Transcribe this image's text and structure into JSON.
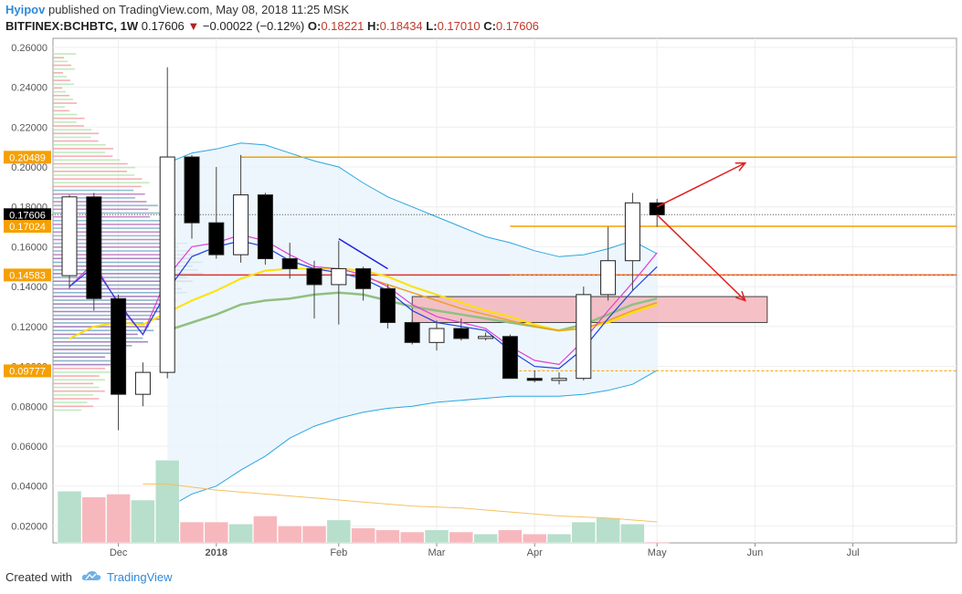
{
  "header": {
    "author": "Hyipov",
    "published_text": "published on TradingView.com, May 08, 2018 11:25 MSK",
    "symbol": "BITFINEX:BCHBTC, 1W",
    "last_price": "0.17606",
    "change_arrow": "▼",
    "change": "−0.00022 (−0.12%)",
    "open_label": "O:",
    "open": "0.18221",
    "high_label": "H:",
    "high": "0.18434",
    "low_label": "L:",
    "low": "0.17010",
    "close_label": "C:",
    "close": "0.17606"
  },
  "footer": {
    "created_with": "Created with",
    "brand": "TradingView"
  },
  "colors": {
    "up_candle_fill": "#ffffff",
    "down_candle_fill": "#000000",
    "orange_level": "#f5a000",
    "red_level": "#e03030",
    "pink_zone": "#f4b6bd",
    "bb_line": "#2aa6e0",
    "bb_fill": "#e8f4fb",
    "magenta_ma": "#e040d0",
    "blue_ma": "#2040e0",
    "yellow_ma": "#ffe000",
    "orange_ma": "#f0a020",
    "green_ma": "#90c080",
    "vol_up": "#b7dfcc",
    "vol_down": "#f7b8bd",
    "arrow": "#e02020"
  },
  "chart_data": {
    "type": "candlestick",
    "symbol": "BITFINEX:BCHBTC",
    "interval": "1W",
    "ylim": [
      0.0115,
      0.2645
    ],
    "y_ticks": [
      "0.26000",
      "0.24000",
      "0.22000",
      "0.20000",
      "0.18000",
      "0.16000",
      "0.14000",
      "0.12000",
      "0.10000",
      "0.08000",
      "0.06000",
      "0.04000",
      "0.02000"
    ],
    "x_ticks": [
      "Dec",
      "2018",
      "Feb",
      "Mar",
      "Apr",
      "May",
      "Jun",
      "Jul"
    ],
    "price_labels": [
      {
        "text": "0.20489",
        "value": 0.20489,
        "color": "#f5a000"
      },
      {
        "text": "0.17606",
        "value": 0.17606,
        "color": "#000000"
      },
      {
        "text": "0.17024",
        "value": 0.17024,
        "color": "#f5a000"
      },
      {
        "text": "0.14583",
        "value": 0.14583,
        "color": "#f5a000"
      },
      {
        "text": "0.09777",
        "value": 0.09777,
        "color": "#f5a000"
      }
    ],
    "candles": [
      {
        "week": 0,
        "o": 0.1455,
        "h": 0.186,
        "l": 0.139,
        "c": 0.185
      },
      {
        "week": 1,
        "o": 0.185,
        "h": 0.187,
        "l": 0.128,
        "c": 0.134
      },
      {
        "week": 2,
        "o": 0.134,
        "h": 0.136,
        "l": 0.068,
        "c": 0.086
      },
      {
        "week": 3,
        "o": 0.086,
        "h": 0.102,
        "l": 0.08,
        "c": 0.097
      },
      {
        "week": 4,
        "o": 0.097,
        "h": 0.25,
        "l": 0.094,
        "c": 0.205
      },
      {
        "week": 5,
        "o": 0.205,
        "h": 0.206,
        "l": 0.164,
        "c": 0.172
      },
      {
        "week": 6,
        "o": 0.172,
        "h": 0.2,
        "l": 0.154,
        "c": 0.156
      },
      {
        "week": 7,
        "o": 0.156,
        "h": 0.206,
        "l": 0.152,
        "c": 0.186
      },
      {
        "week": 8,
        "o": 0.186,
        "h": 0.187,
        "l": 0.151,
        "c": 0.154
      },
      {
        "week": 9,
        "o": 0.154,
        "h": 0.162,
        "l": 0.144,
        "c": 0.149
      },
      {
        "week": 10,
        "o": 0.149,
        "h": 0.153,
        "l": 0.124,
        "c": 0.141
      },
      {
        "week": 11,
        "o": 0.141,
        "h": 0.163,
        "l": 0.121,
        "c": 0.149
      },
      {
        "week": 12,
        "o": 0.149,
        "h": 0.15,
        "l": 0.133,
        "c": 0.139
      },
      {
        "week": 13,
        "o": 0.139,
        "h": 0.141,
        "l": 0.119,
        "c": 0.122
      },
      {
        "week": 14,
        "o": 0.122,
        "h": 0.123,
        "l": 0.111,
        "c": 0.112
      },
      {
        "week": 15,
        "o": 0.112,
        "h": 0.123,
        "l": 0.108,
        "c": 0.119
      },
      {
        "week": 16,
        "o": 0.119,
        "h": 0.124,
        "l": 0.113,
        "c": 0.114
      },
      {
        "week": 17,
        "o": 0.114,
        "h": 0.117,
        "l": 0.113,
        "c": 0.115
      },
      {
        "week": 18,
        "o": 0.115,
        "h": 0.116,
        "l": 0.094,
        "c": 0.094
      },
      {
        "week": 19,
        "o": 0.094,
        "h": 0.098,
        "l": 0.092,
        "c": 0.093
      },
      {
        "week": 20,
        "o": 0.093,
        "h": 0.097,
        "l": 0.091,
        "c": 0.094
      },
      {
        "week": 21,
        "o": 0.094,
        "h": 0.14,
        "l": 0.093,
        "c": 0.136
      },
      {
        "week": 22,
        "o": 0.136,
        "h": 0.17,
        "l": 0.133,
        "c": 0.153
      },
      {
        "week": 23,
        "o": 0.153,
        "h": 0.187,
        "l": 0.138,
        "c": 0.182
      },
      {
        "week": 24,
        "o": 0.182,
        "h": 0.184,
        "l": 0.17,
        "c": 0.176
      }
    ],
    "volume": [
      {
        "week": -1,
        "v": 0.0095,
        "up": false
      },
      {
        "week": 0,
        "v": 0.0375,
        "up": true
      },
      {
        "week": 1,
        "v": 0.0345,
        "up": false
      },
      {
        "week": 2,
        "v": 0.036,
        "up": false
      },
      {
        "week": 3,
        "v": 0.033,
        "up": true
      },
      {
        "week": 4,
        "v": 0.053,
        "up": true
      },
      {
        "week": 5,
        "v": 0.022,
        "up": false
      },
      {
        "week": 6,
        "v": 0.022,
        "up": false
      },
      {
        "week": 7,
        "v": 0.021,
        "up": true
      },
      {
        "week": 8,
        "v": 0.025,
        "up": false
      },
      {
        "week": 9,
        "v": 0.02,
        "up": false
      },
      {
        "week": 10,
        "v": 0.02,
        "up": false
      },
      {
        "week": 11,
        "v": 0.023,
        "up": true
      },
      {
        "week": 12,
        "v": 0.019,
        "up": false
      },
      {
        "week": 13,
        "v": 0.018,
        "up": false
      },
      {
        "week": 14,
        "v": 0.017,
        "up": false
      },
      {
        "week": 15,
        "v": 0.018,
        "up": true
      },
      {
        "week": 16,
        "v": 0.017,
        "up": false
      },
      {
        "week": 17,
        "v": 0.016,
        "up": true
      },
      {
        "week": 18,
        "v": 0.018,
        "up": false
      },
      {
        "week": 19,
        "v": 0.016,
        "up": false
      },
      {
        "week": 20,
        "v": 0.016,
        "up": true
      },
      {
        "week": 21,
        "v": 0.022,
        "up": true
      },
      {
        "week": 22,
        "v": 0.024,
        "up": true
      },
      {
        "week": 23,
        "v": 0.021,
        "up": true
      },
      {
        "week": 24,
        "v": 0.012,
        "up": false
      }
    ],
    "volume_ma": [
      [
        3,
        0.041
      ],
      [
        4,
        0.041
      ],
      [
        6,
        0.038
      ],
      [
        8,
        0.036
      ],
      [
        10,
        0.034
      ],
      [
        12,
        0.032
      ],
      [
        14,
        0.03
      ],
      [
        16,
        0.029
      ],
      [
        18,
        0.027
      ],
      [
        20,
        0.025
      ],
      [
        22,
        0.024
      ],
      [
        24,
        0.022
      ]
    ],
    "bollinger": {
      "upper": [
        [
          4,
          0.202
        ],
        [
          5,
          0.207
        ],
        [
          6,
          0.209
        ],
        [
          7,
          0.212
        ],
        [
          8,
          0.211
        ],
        [
          9,
          0.207
        ],
        [
          10,
          0.203
        ],
        [
          11,
          0.2
        ],
        [
          12,
          0.192
        ],
        [
          13,
          0.185
        ],
        [
          14,
          0.18
        ],
        [
          15,
          0.175
        ],
        [
          16,
          0.17
        ],
        [
          17,
          0.165
        ],
        [
          18,
          0.162
        ],
        [
          19,
          0.158
        ],
        [
          20,
          0.155
        ],
        [
          21,
          0.156
        ],
        [
          22,
          0.159
        ],
        [
          23,
          0.163
        ],
        [
          24,
          0.1565
        ]
      ],
      "lower": [
        [
          4,
          0.029
        ],
        [
          5,
          0.036
        ],
        [
          6,
          0.04
        ],
        [
          7,
          0.048
        ],
        [
          8,
          0.055
        ],
        [
          9,
          0.064
        ],
        [
          10,
          0.07
        ],
        [
          11,
          0.074
        ],
        [
          12,
          0.077
        ],
        [
          13,
          0.079
        ],
        [
          14,
          0.08
        ],
        [
          15,
          0.082
        ],
        [
          16,
          0.083
        ],
        [
          17,
          0.084
        ],
        [
          18,
          0.085
        ],
        [
          19,
          0.085
        ],
        [
          20,
          0.085
        ],
        [
          21,
          0.086
        ],
        [
          22,
          0.088
        ],
        [
          23,
          0.091
        ],
        [
          24,
          0.098
        ]
      ]
    },
    "ma_magenta": [
      [
        0,
        0.14
      ],
      [
        1,
        0.152
      ],
      [
        2,
        0.131
      ],
      [
        3,
        0.116
      ],
      [
        4,
        0.145
      ],
      [
        5,
        0.16
      ],
      [
        6,
        0.162
      ],
      [
        7,
        0.166
      ],
      [
        8,
        0.163
      ],
      [
        9,
        0.156
      ],
      [
        10,
        0.15
      ],
      [
        11,
        0.149
      ],
      [
        12,
        0.146
      ],
      [
        13,
        0.14
      ],
      [
        14,
        0.131
      ],
      [
        15,
        0.125
      ],
      [
        16,
        0.122
      ],
      [
        17,
        0.119
      ],
      [
        18,
        0.11
      ],
      [
        19,
        0.103
      ],
      [
        20,
        0.101
      ],
      [
        21,
        0.113
      ],
      [
        22,
        0.128
      ],
      [
        23,
        0.142
      ],
      [
        24,
        0.157
      ]
    ],
    "ma_blue": [
      [
        0,
        0.14
      ],
      [
        1,
        0.15
      ],
      [
        2,
        0.132
      ],
      [
        3,
        0.116
      ],
      [
        4,
        0.138
      ],
      [
        5,
        0.155
      ],
      [
        6,
        0.16
      ],
      [
        7,
        0.163
      ],
      [
        8,
        0.16
      ],
      [
        9,
        0.153
      ],
      [
        10,
        0.149
      ],
      [
        11,
        0.147
      ],
      [
        12,
        0.144
      ],
      [
        13,
        0.138
      ],
      [
        14,
        0.128
      ],
      [
        15,
        0.122
      ],
      [
        16,
        0.12
      ],
      [
        17,
        0.118
      ],
      [
        18,
        0.108
      ],
      [
        19,
        0.1
      ],
      [
        20,
        0.099
      ],
      [
        21,
        0.109
      ],
      [
        22,
        0.124
      ],
      [
        23,
        0.138
      ],
      [
        24,
        0.15
      ]
    ],
    "ma_yellow": [
      [
        0,
        0.114
      ],
      [
        1,
        0.12
      ],
      [
        2,
        0.122
      ],
      [
        3,
        0.121
      ],
      [
        4,
        0.127
      ],
      [
        5,
        0.133
      ],
      [
        6,
        0.138
      ],
      [
        7,
        0.144
      ],
      [
        8,
        0.148
      ],
      [
        9,
        0.149
      ],
      [
        10,
        0.149
      ],
      [
        11,
        0.149
      ],
      [
        12,
        0.148
      ],
      [
        13,
        0.145
      ],
      [
        14,
        0.14
      ],
      [
        15,
        0.136
      ],
      [
        16,
        0.132
      ],
      [
        17,
        0.128
      ],
      [
        18,
        0.125
      ],
      [
        19,
        0.121
      ],
      [
        20,
        0.118
      ],
      [
        21,
        0.119
      ],
      [
        22,
        0.122
      ],
      [
        23,
        0.127
      ],
      [
        24,
        0.131
      ]
    ],
    "ma_orange": [
      [
        12,
        0.145
      ],
      [
        13,
        0.141
      ],
      [
        14,
        0.137
      ],
      [
        15,
        0.133
      ],
      [
        16,
        0.129
      ],
      [
        17,
        0.126
      ],
      [
        18,
        0.123
      ],
      [
        19,
        0.12
      ],
      [
        20,
        0.118
      ],
      [
        21,
        0.119
      ],
      [
        22,
        0.123
      ],
      [
        23,
        0.128
      ],
      [
        24,
        0.132
      ]
    ],
    "ma_green": [
      [
        4,
        0.118
      ],
      [
        5,
        0.122
      ],
      [
        6,
        0.126
      ],
      [
        7,
        0.131
      ],
      [
        8,
        0.133
      ],
      [
        9,
        0.134
      ],
      [
        10,
        0.136
      ],
      [
        11,
        0.137
      ],
      [
        12,
        0.136
      ],
      [
        13,
        0.133
      ],
      [
        14,
        0.13
      ],
      [
        15,
        0.128
      ],
      [
        16,
        0.126
      ],
      [
        17,
        0.124
      ],
      [
        18,
        0.122
      ],
      [
        19,
        0.12
      ],
      [
        20,
        0.118
      ],
      [
        21,
        0.121
      ],
      [
        22,
        0.126
      ],
      [
        23,
        0.131
      ],
      [
        24,
        0.134
      ]
    ],
    "horizontal_levels": [
      {
        "value": 0.20489,
        "color": "#f5a000",
        "style": "solid",
        "from_week": 7.0
      },
      {
        "value": 0.17024,
        "color": "#f5a000",
        "style": "solid",
        "from_week": 18.0
      },
      {
        "value": 0.17606,
        "color": "#444444",
        "style": "dotted",
        "from_week": -1.5
      },
      {
        "value": 0.14583,
        "color": "#e03030",
        "style": "solid",
        "from_week": 4.0
      },
      {
        "value": 0.14583,
        "color": "#f5a000",
        "style": "dashed",
        "from_week": 18.0
      },
      {
        "value": 0.09777,
        "color": "#f5a000",
        "style": "dashed",
        "from_week": 18.0
      }
    ],
    "zones": [
      {
        "from_week": 14.0,
        "to_week": 28.5,
        "low": 0.122,
        "high": 0.135,
        "color": "#f4b6bd"
      }
    ],
    "trendlines": [
      {
        "from": [
          11.0,
          0.164
        ],
        "to": [
          13.0,
          0.149
        ],
        "color": "#2020e0"
      }
    ],
    "arrows": [
      {
        "from": [
          24.0,
          0.18
        ],
        "to": [
          27.6,
          0.202
        ],
        "color": "#e02020"
      },
      {
        "from": [
          24.0,
          0.176
        ],
        "to": [
          27.6,
          0.133
        ],
        "color": "#e02020"
      }
    ],
    "volume_profile_note": "horizontal volume-by-price histogram on left edge"
  }
}
